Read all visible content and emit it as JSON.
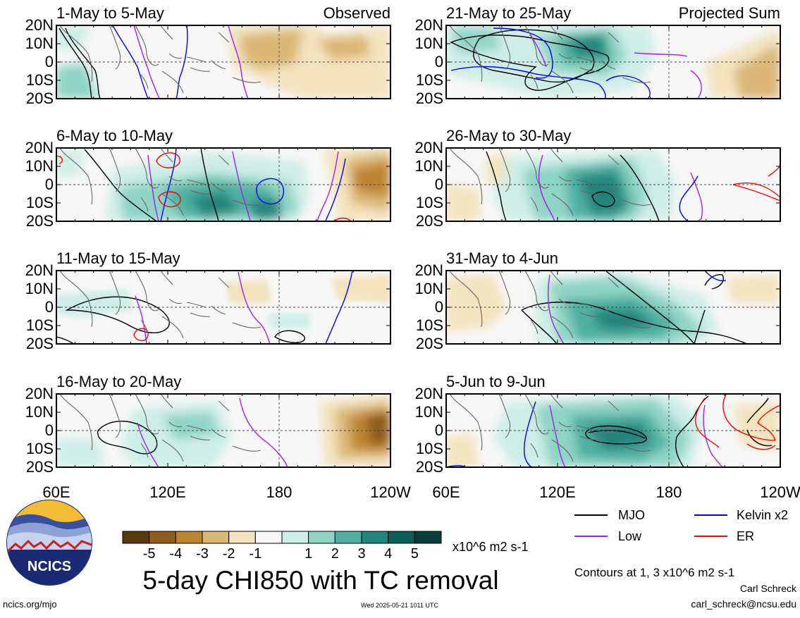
{
  "chart_data": {
    "type": "heatmap",
    "title": "5-day CHI850 with TC removal",
    "column_headers": [
      "Observed",
      "Projected Sum"
    ],
    "panels": [
      {
        "label": "1-May to 5-May",
        "column": "observed",
        "shading_peaks": [
          {
            "lon": 175,
            "lat": 12,
            "value": -2.2
          },
          {
            "lon": 205,
            "lat": 8,
            "value": -1.8
          },
          {
            "lon": 63,
            "lat": -10,
            "value": 1.3
          }
        ]
      },
      {
        "label": "6-May to 10-May",
        "column": "observed",
        "shading_peaks": [
          {
            "lon": 140,
            "lat": -10,
            "value": 4.2
          },
          {
            "lon": 170,
            "lat": -13,
            "value": 4.6
          },
          {
            "lon": 225,
            "lat": 2,
            "value": -3.2
          }
        ]
      },
      {
        "label": "11-May to 15-May",
        "column": "observed",
        "shading_peaks": [
          {
            "lon": 175,
            "lat": 8,
            "value": -0.8
          },
          {
            "lon": 95,
            "lat": 0,
            "value": 1.0
          }
        ]
      },
      {
        "label": "16-May to 20-May",
        "column": "observed",
        "shading_peaks": [
          {
            "lon": 227,
            "lat": 2,
            "value": -4.5
          },
          {
            "lon": 150,
            "lat": 5,
            "value": 1.5
          }
        ]
      },
      {
        "label": "21-May to 25-May",
        "column": "projected",
        "shading_peaks": [
          {
            "lon": 148,
            "lat": 8,
            "value": 3.4
          },
          {
            "lon": 232,
            "lat": -6,
            "value": -2.2
          }
        ]
      },
      {
        "label": "26-May to 30-May",
        "column": "projected",
        "shading_peaks": [
          {
            "lon": 150,
            "lat": -8,
            "value": 4.2
          },
          {
            "lon": 65,
            "lat": -15,
            "value": -1.1
          }
        ]
      },
      {
        "label": "31-May to 4-Jun",
        "column": "projected",
        "shading_peaks": [
          {
            "lon": 140,
            "lat": -5,
            "value": 3.2
          },
          {
            "lon": 70,
            "lat": 5,
            "value": -1.1
          }
        ]
      },
      {
        "label": "5-Jun to 9-Jun",
        "column": "projected",
        "shading_peaks": [
          {
            "lon": 150,
            "lat": -2,
            "value": 3.4
          },
          {
            "lon": 65,
            "lat": 0,
            "value": -1.2
          }
        ]
      }
    ],
    "y_ticks": [
      "20N",
      "10N",
      "0",
      "10S",
      "20S"
    ],
    "x_ticks": [
      "60E",
      "120E",
      "180",
      "120W"
    ],
    "xlim": [
      60,
      240
    ],
    "ylim": [
      -20,
      20
    ],
    "colorbar": {
      "ticks": [
        "-5",
        "-4",
        "-3",
        "-2",
        "-1",
        "1",
        "2",
        "3",
        "4",
        "5"
      ],
      "colors": [
        "#5a3a0c",
        "#8e5c1c",
        "#bd8530",
        "#dcb877",
        "#f3e3be",
        "#f7f7f7",
        "#cdeee6",
        "#8fd4c4",
        "#4fb0a2",
        "#22857b",
        "#0b5e56",
        "#03403b"
      ],
      "units": "x10^6 m2 s-1"
    },
    "legend": {
      "position": "bottom-right",
      "entries": [
        {
          "label": "MJO",
          "color": "#000000"
        },
        {
          "label": "Kelvin x2",
          "color": "#0000ff"
        },
        {
          "label": "Low",
          "color": "#a020f0"
        },
        {
          "label": "ER",
          "color": "#ff0000"
        }
      ]
    },
    "contour_note": "Contours at 1, 3 x10^6 m2 s-1"
  },
  "footer": {
    "logo_text": "NCICS",
    "url": "ncics.org/mjo",
    "timestamp": "Wed 2025-05-21 1011 UTC",
    "author": "Carl Schreck",
    "email": "carl_schreck@ncsu.edu"
  }
}
